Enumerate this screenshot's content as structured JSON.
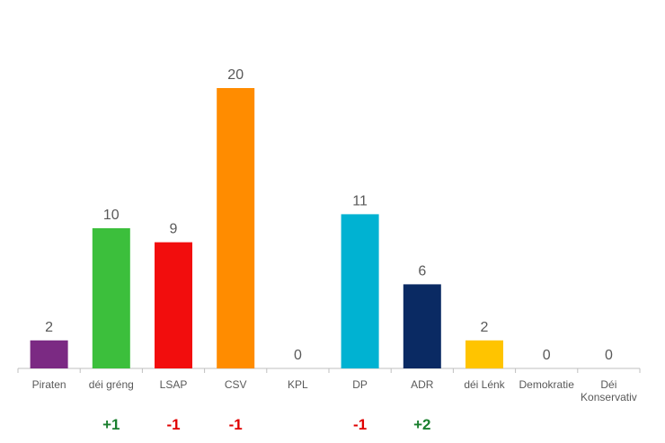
{
  "chart_data": {
    "type": "bar",
    "categories": [
      [
        "Piraten"
      ],
      [
        "déi gréng"
      ],
      [
        "LSAP"
      ],
      [
        "CSV"
      ],
      [
        "KPL"
      ],
      [
        "DP"
      ],
      [
        "ADR"
      ],
      [
        "déi Lénk"
      ],
      [
        "Demokratie"
      ],
      [
        "Déi",
        "Konservativ"
      ]
    ],
    "values": [
      2,
      10,
      9,
      20,
      0,
      11,
      6,
      2,
      0,
      0
    ],
    "changes": [
      "",
      "+1",
      "-1",
      "-1",
      "",
      "-1",
      "+2",
      "",
      "",
      ""
    ],
    "colors": [
      "#7b2a83",
      "#3cbf3c",
      "#f20d0d",
      "#ff8c00",
      "#c00000",
      "#00b2d2",
      "#0a2a63",
      "#ffc400",
      "#999999",
      "#999999"
    ],
    "positive_color": "#1a7f2e",
    "negative_color": "#e00000",
    "ylim": [
      0,
      20
    ],
    "grid": false,
    "legend": "none",
    "title": "",
    "xlabel": "",
    "ylabel": ""
  }
}
